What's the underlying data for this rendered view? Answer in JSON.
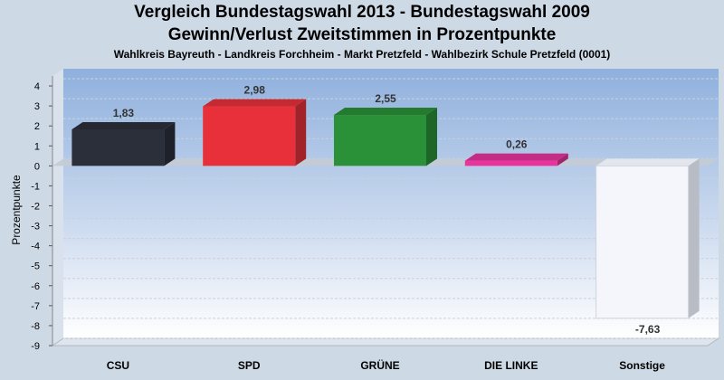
{
  "chart_data": {
    "type": "bar",
    "title": "Vergleich Bundestagswahl 2013 - Bundestagswahl 2009",
    "subtitle": "Gewinn/Verlust Zweitstimmen in Prozentpunkte",
    "subtitle2": "Wahlkreis Bayreuth - Landkreis Forchheim  - Markt Pretzfeld - Wahlbezirk Schule Pretzfeld (0001)",
    "ylabel": "Prozentpunkte",
    "xlabel": "",
    "ylim": [
      -9,
      4.5
    ],
    "yticks": [
      4,
      3,
      2,
      1,
      0,
      -1,
      -2,
      -3,
      -4,
      -5,
      -6,
      -7,
      -8,
      -9
    ],
    "categories": [
      "CSU",
      "SPD",
      "GRÜNE",
      "DIE LINKE",
      "Sonstige"
    ],
    "values": [
      1.83,
      2.98,
      2.55,
      0.26,
      -7.63
    ],
    "value_labels": [
      "1,83",
      "2,98",
      "2,55",
      "0,26",
      "-7,63"
    ],
    "colors": [
      "#2b2f3a",
      "#e8303a",
      "#2a9138",
      "#e8349c",
      "#f4f6fb"
    ],
    "grid": true,
    "legend": "none"
  }
}
